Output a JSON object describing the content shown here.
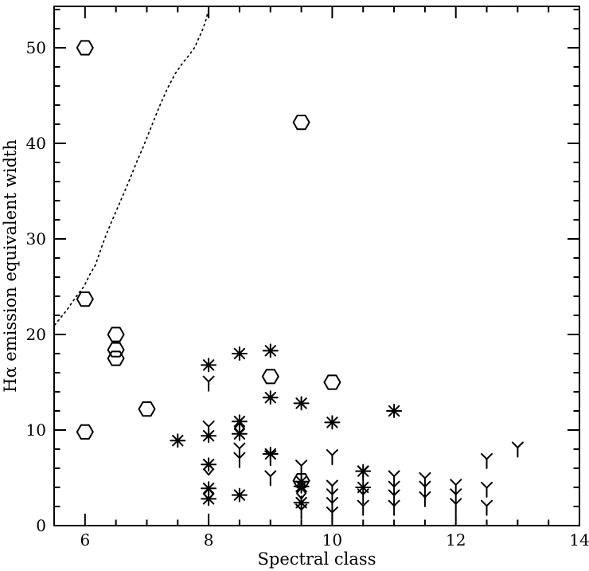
{
  "figure": {
    "background": "#ffffff",
    "ink_color": "#000000"
  },
  "chart_data": {
    "type": "scatter",
    "title": "",
    "xlabel": "Spectral class",
    "ylabel": "Hα emission equivalent width",
    "xlim": [
      5.5,
      14
    ],
    "ylim": [
      0,
      54.33
    ],
    "x_major_ticks": [
      6,
      8,
      10,
      12,
      14
    ],
    "x_minor_step": 0.5,
    "y_major_ticks": [
      0,
      10,
      20,
      30,
      40,
      50
    ],
    "y_minor_step": 2,
    "grid": false,
    "legend": "none",
    "series": [
      {
        "name": "open-hexagon-points",
        "symbol": "open-hexagon",
        "points": [
          [
            6.0,
            50.0
          ],
          [
            6.0,
            23.7
          ],
          [
            6.0,
            9.8
          ],
          [
            6.5,
            20.0
          ],
          [
            6.5,
            18.4
          ],
          [
            6.5,
            17.5
          ],
          [
            7.0,
            12.2
          ],
          [
            9.0,
            15.6
          ],
          [
            9.5,
            42.2
          ],
          [
            9.5,
            4.7
          ],
          [
            10.0,
            15.0
          ]
        ]
      },
      {
        "name": "asterisk-points",
        "symbol": "asterisk",
        "points": [
          [
            7.5,
            8.9
          ],
          [
            8.0,
            16.8
          ],
          [
            8.0,
            9.4
          ],
          [
            8.0,
            6.4
          ],
          [
            8.0,
            3.9
          ],
          [
            8.0,
            2.8
          ],
          [
            8.5,
            18.0
          ],
          [
            8.5,
            10.9
          ],
          [
            8.5,
            9.6
          ],
          [
            8.5,
            3.2
          ],
          [
            9.0,
            18.3
          ],
          [
            9.0,
            13.4
          ],
          [
            9.0,
            7.5
          ],
          [
            9.5,
            12.8
          ],
          [
            9.5,
            4.6
          ],
          [
            9.5,
            4.1
          ],
          [
            9.5,
            2.4
          ],
          [
            10.0,
            10.8
          ],
          [
            10.5,
            5.7
          ],
          [
            10.5,
            4.0
          ],
          [
            11.0,
            12.0
          ]
        ]
      },
      {
        "name": "upper-limit-points",
        "symbol": "y-down",
        "points": [
          [
            8.0,
            14.9
          ],
          [
            8.0,
            10.2
          ],
          [
            8.5,
            7.9
          ],
          [
            8.5,
            6.9
          ],
          [
            9.0,
            7.1
          ],
          [
            9.0,
            5.0
          ],
          [
            9.5,
            6.1
          ],
          [
            9.5,
            1.5
          ],
          [
            10.0,
            7.2
          ],
          [
            10.0,
            4.0
          ],
          [
            10.0,
            3.1
          ],
          [
            10.0,
            2.2
          ],
          [
            10.0,
            1.2
          ],
          [
            10.5,
            5.5
          ],
          [
            10.5,
            3.1
          ],
          [
            10.5,
            1.9
          ],
          [
            11.0,
            5.0
          ],
          [
            11.0,
            3.9
          ],
          [
            11.0,
            3.0
          ],
          [
            11.0,
            1.9
          ],
          [
            11.5,
            4.8
          ],
          [
            11.5,
            3.9
          ],
          [
            11.5,
            2.8
          ],
          [
            12.0,
            4.1
          ],
          [
            12.0,
            3.1
          ],
          [
            12.0,
            2.1
          ],
          [
            12.5,
            6.8
          ],
          [
            12.5,
            3.8
          ],
          [
            12.5,
            1.9
          ],
          [
            13.0,
            8.0
          ]
        ]
      },
      {
        "name": "open-diamond-points",
        "symbol": "open-diamond",
        "points": [
          [
            8.0,
            5.9
          ],
          [
            8.0,
            3.3
          ],
          [
            8.5,
            10.2
          ],
          [
            9.5,
            3.4
          ]
        ]
      }
    ],
    "curve": {
      "name": "dotted-boundary-curve",
      "style": "dotted",
      "points": [
        [
          5.51,
          21.0
        ],
        [
          5.7,
          22.5
        ],
        [
          5.86,
          24.0
        ],
        [
          5.98,
          25.0
        ],
        [
          6.08,
          26.3
        ],
        [
          6.17,
          27.3
        ],
        [
          6.25,
          28.8
        ],
        [
          6.34,
          30.4
        ],
        [
          6.43,
          31.8
        ],
        [
          6.53,
          33.3
        ],
        [
          6.63,
          34.8
        ],
        [
          6.74,
          36.5
        ],
        [
          6.84,
          38.1
        ],
        [
          6.94,
          39.6
        ],
        [
          7.07,
          41.7
        ],
        [
          7.2,
          43.8
        ],
        [
          7.33,
          45.7
        ],
        [
          7.46,
          47.3
        ],
        [
          7.59,
          48.5
        ],
        [
          7.68,
          49.2
        ],
        [
          7.77,
          50.0
        ],
        [
          7.84,
          51.0
        ],
        [
          7.91,
          52.0
        ],
        [
          7.96,
          53.0
        ],
        [
          8.0,
          54.0
        ],
        [
          8.03,
          55.0
        ]
      ]
    }
  }
}
